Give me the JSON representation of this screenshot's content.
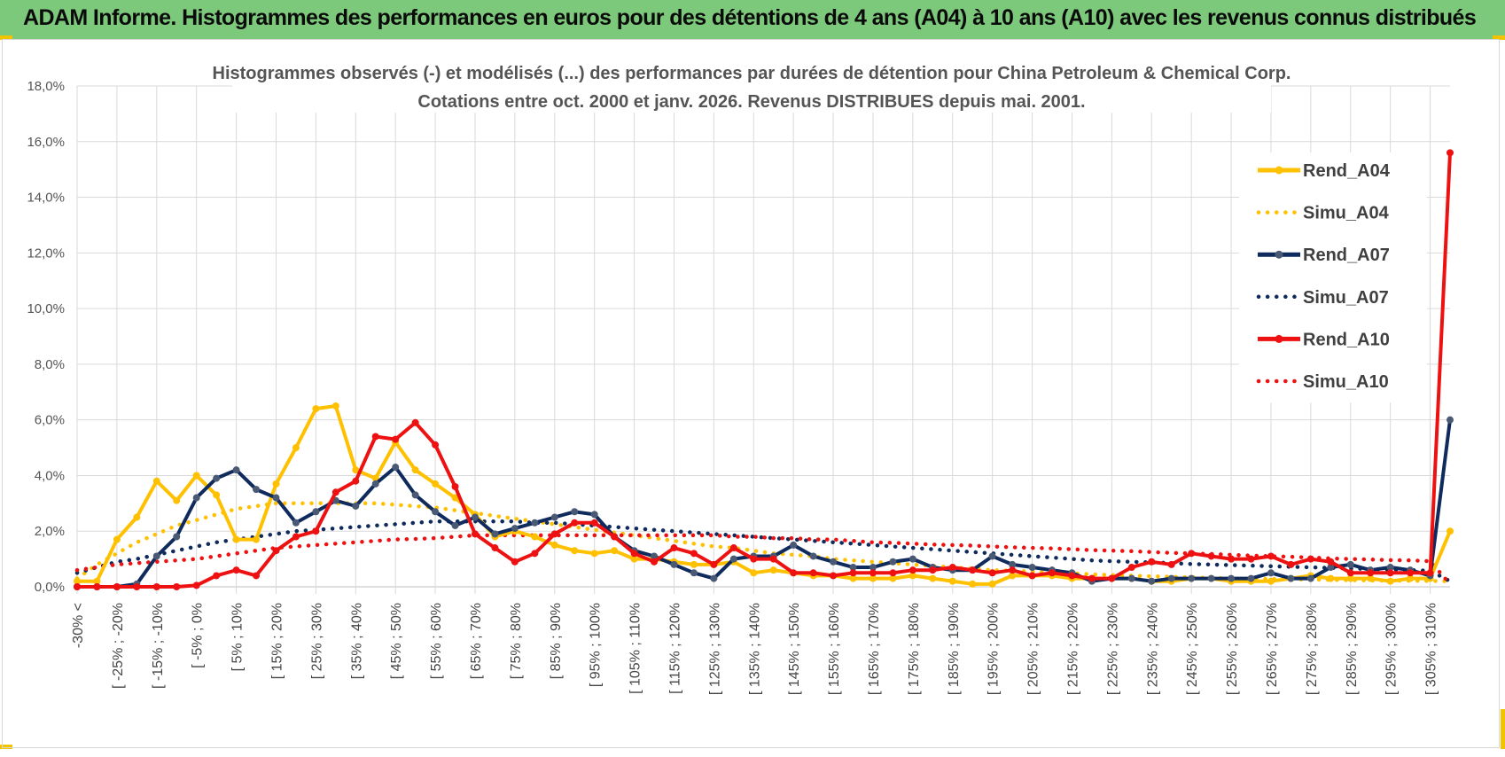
{
  "header": {
    "title": "ADAM Informe. Histogrammes des performances en euros pour des détentions de 4 ans (A04) à 10 ans (A10) avec les revenus connus distribués"
  },
  "chart_data": {
    "type": "line",
    "title": "Histogrammes observés (-) et modélisés (...) des performances par durées de détention pour China Petroleum & Chemical Corp.",
    "subtitle": "Cotations entre oct. 2000 et janv. 2026.  Revenus DISTRIBUES depuis mai. 2001.",
    "xlabel": "",
    "ylabel": "",
    "ylim": [
      0,
      18
    ],
    "yticks": [
      "0,0%",
      "2,0%",
      "4,0%",
      "6,0%",
      "8,0%",
      "10,0%",
      "12,0%",
      "14,0%",
      "16,0%",
      "18,0%"
    ],
    "grid": "vertical and horizontal",
    "legend_position": "right",
    "x_tick_labels": [
      "-30% <",
      "[ -25% ; -20%",
      "[ -15% ; -10%",
      "[ -5% ; 0%",
      "[ 5% ; 10%",
      "[ 15% ; 20%",
      "[ 25% ; 30%",
      "[ 35% ; 40%",
      "[ 45% ; 50%",
      "[ 55% ; 60%",
      "[ 65% ; 70%",
      "[ 75% ; 80%",
      "[ 85% ; 90%",
      "[ 95% ; 100%",
      "[ 105% ; 110%",
      "[ 115% ; 120%",
      "[ 125% ; 130%",
      "[ 135% ; 140%",
      "[ 145% ; 150%",
      "[ 155% ; 160%",
      "[ 165% ; 170%",
      "[ 175% ; 180%",
      "[ 185% ; 190%",
      "[ 195% ; 200%",
      "[ 205% ; 210%",
      "[ 215% ; 220%",
      "[ 225% ; 230%",
      "[ 235% ; 240%",
      "[ 245% ; 250%",
      "[ 255% ; 260%",
      "[ 265% ; 270%",
      "[ 275% ; 280%",
      "[ 285% ; 290%",
      "[ 295% ; 300%",
      "[ 305% ; 310%"
    ],
    "series": [
      {
        "name": "Rend_A04",
        "style": "solid",
        "color": "#ffc000",
        "values": [
          0.2,
          0.2,
          1.7,
          2.5,
          3.8,
          3.1,
          4.0,
          3.3,
          1.7,
          1.7,
          3.7,
          5.0,
          6.4,
          6.5,
          4.2,
          3.9,
          5.2,
          4.2,
          3.7,
          3.2,
          2.6,
          1.8,
          2.0,
          1.8,
          1.5,
          1.3,
          1.2,
          1.3,
          1.0,
          1.0,
          0.9,
          0.8,
          0.8,
          0.9,
          0.5,
          0.6,
          0.5,
          0.4,
          0.4,
          0.3,
          0.3,
          0.3,
          0.4,
          0.3,
          0.2,
          0.1,
          0.1,
          0.4,
          0.4,
          0.4,
          0.3,
          0.3,
          0.3,
          0.3,
          0.2,
          0.2,
          0.3,
          0.3,
          0.2,
          0.2,
          0.2,
          0.3,
          0.4,
          0.3,
          0.3,
          0.3,
          0.2,
          0.3,
          0.3,
          2.0
        ]
      },
      {
        "name": "Simu_A04",
        "style": "dotted",
        "color": "#ffc000",
        "values": [
          0.3,
          0.8,
          1.2,
          1.6,
          1.9,
          2.2,
          2.4,
          2.6,
          2.8,
          2.9,
          3.0,
          3.0,
          3.0,
          3.0,
          3.0,
          3.0,
          2.95,
          2.9,
          2.85,
          2.75,
          2.65,
          2.55,
          2.45,
          2.35,
          2.25,
          2.15,
          2.05,
          1.95,
          1.85,
          1.75,
          1.65,
          1.55,
          1.45,
          1.4,
          1.3,
          1.2,
          1.15,
          1.1,
          1.0,
          0.95,
          0.9,
          0.85,
          0.8,
          0.75,
          0.7,
          0.65,
          0.6,
          0.58,
          0.55,
          0.5,
          0.48,
          0.45,
          0.42,
          0.4,
          0.38,
          0.36,
          0.34,
          0.32,
          0.3,
          0.29,
          0.28,
          0.27,
          0.26,
          0.25,
          0.24,
          0.23,
          0.22,
          0.22,
          0.21,
          0.2
        ]
      },
      {
        "name": "Rend_A07",
        "style": "solid",
        "color": "#0f2a5c",
        "values": [
          0.0,
          0.0,
          0.0,
          0.1,
          1.1,
          1.8,
          3.2,
          3.9,
          4.2,
          3.5,
          3.2,
          2.3,
          2.7,
          3.1,
          2.9,
          3.7,
          4.3,
          3.3,
          2.7,
          2.2,
          2.5,
          1.9,
          2.1,
          2.3,
          2.5,
          2.7,
          2.6,
          1.8,
          1.3,
          1.1,
          0.8,
          0.5,
          0.3,
          1.0,
          1.1,
          1.1,
          1.5,
          1.1,
          0.9,
          0.7,
          0.7,
          0.9,
          1.0,
          0.7,
          0.6,
          0.6,
          1.1,
          0.8,
          0.7,
          0.6,
          0.5,
          0.2,
          0.3,
          0.3,
          0.2,
          0.3,
          0.3,
          0.3,
          0.3,
          0.3,
          0.5,
          0.3,
          0.3,
          0.7,
          0.8,
          0.6,
          0.7,
          0.6,
          0.4,
          6.0
        ]
      },
      {
        "name": "Simu_A07",
        "style": "dotted",
        "color": "#0f2a5c",
        "values": [
          0.5,
          0.7,
          0.9,
          1.0,
          1.15,
          1.3,
          1.45,
          1.6,
          1.7,
          1.8,
          1.9,
          2.0,
          2.05,
          2.1,
          2.15,
          2.2,
          2.25,
          2.3,
          2.35,
          2.35,
          2.35,
          2.35,
          2.35,
          2.3,
          2.3,
          2.25,
          2.2,
          2.15,
          2.1,
          2.05,
          2.0,
          1.95,
          1.9,
          1.85,
          1.8,
          1.75,
          1.7,
          1.65,
          1.6,
          1.55,
          1.5,
          1.45,
          1.4,
          1.35,
          1.3,
          1.25,
          1.2,
          1.15,
          1.1,
          1.05,
          1.0,
          0.95,
          0.92,
          0.9,
          0.88,
          0.85,
          0.82,
          0.8,
          0.78,
          0.76,
          0.74,
          0.72,
          0.7,
          0.68,
          0.66,
          0.64,
          0.62,
          0.6,
          0.58,
          0.2
        ]
      },
      {
        "name": "Rend_A10",
        "style": "solid",
        "color": "#ee1111",
        "values": [
          0.0,
          0.0,
          0.0,
          0.0,
          0.0,
          0.0,
          0.05,
          0.4,
          0.6,
          0.4,
          1.3,
          1.8,
          2.0,
          3.4,
          3.8,
          5.4,
          5.3,
          5.9,
          5.1,
          3.6,
          1.9,
          1.4,
          0.9,
          1.2,
          1.9,
          2.3,
          2.3,
          1.8,
          1.2,
          0.9,
          1.4,
          1.2,
          0.8,
          1.4,
          1.0,
          1.0,
          0.5,
          0.5,
          0.4,
          0.5,
          0.5,
          0.5,
          0.6,
          0.6,
          0.7,
          0.6,
          0.5,
          0.6,
          0.4,
          0.5,
          0.4,
          0.3,
          0.3,
          0.7,
          0.9,
          0.8,
          1.2,
          1.1,
          1.0,
          1.0,
          1.1,
          0.8,
          1.0,
          0.9,
          0.5,
          0.5,
          0.5,
          0.5,
          0.5,
          15.6
        ]
      },
      {
        "name": "Simu_A10",
        "style": "dotted",
        "color": "#ee1111",
        "values": [
          0.6,
          0.7,
          0.8,
          0.85,
          0.9,
          0.95,
          1.0,
          1.1,
          1.2,
          1.3,
          1.4,
          1.45,
          1.5,
          1.55,
          1.6,
          1.65,
          1.7,
          1.72,
          1.75,
          1.8,
          1.85,
          1.85,
          1.85,
          1.85,
          1.85,
          1.85,
          1.85,
          1.85,
          1.85,
          1.85,
          1.85,
          1.85,
          1.85,
          1.8,
          1.8,
          1.75,
          1.75,
          1.7,
          1.7,
          1.65,
          1.6,
          1.58,
          1.55,
          1.52,
          1.5,
          1.48,
          1.45,
          1.42,
          1.4,
          1.38,
          1.35,
          1.32,
          1.3,
          1.28,
          1.25,
          1.22,
          1.2,
          1.18,
          1.15,
          1.12,
          1.1,
          1.08,
          1.05,
          1.02,
          1.0,
          0.98,
          0.96,
          0.95,
          0.92,
          0.1
        ]
      }
    ]
  }
}
